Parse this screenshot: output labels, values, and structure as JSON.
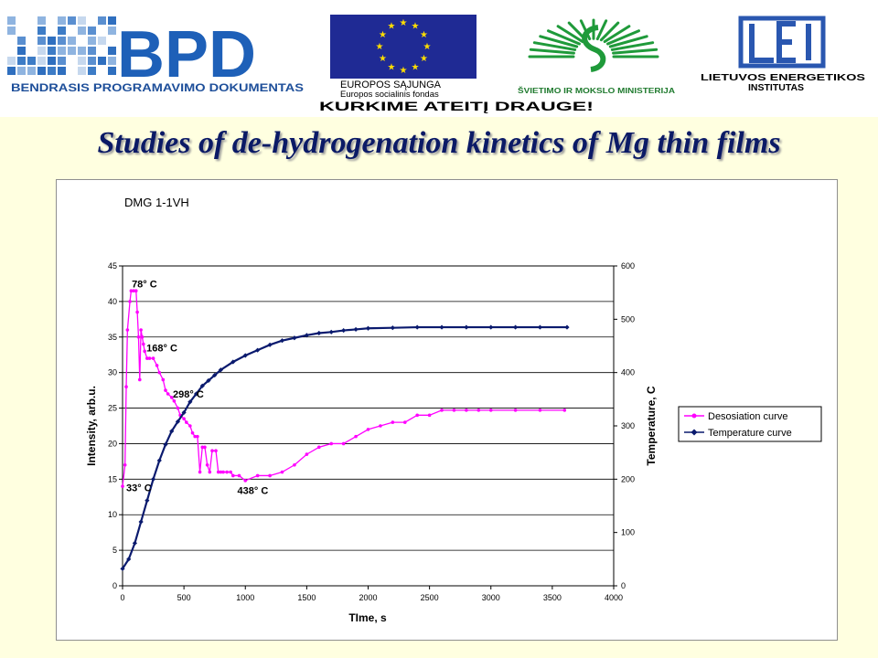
{
  "header": {
    "bpd": {
      "logo_text": "BPD",
      "caption": "BENDRASIS PROGRAMAVIMO DOKUMENTAS"
    },
    "eu": {
      "line1": "EUROPOS SĄJUNGA",
      "line2": "Europos socialinis fondas",
      "motto": "KURKIME ATEITĮ DRAUGE!"
    },
    "ministry": {
      "caption": "ŠVIETIMO IR MOKSLO MINISTERIJA"
    },
    "lei": {
      "logo_text": "LEI",
      "line1": "LIETUVOS ENERGETIKOS",
      "line2": "INSTITUTAS"
    }
  },
  "title": "Studies of de-hydrogenation kinetics of Mg thin films",
  "chart_data": {
    "type": "line",
    "title": "DMG 1-1VH",
    "xlabel": "TIme, s",
    "ylabel": "Intensity, arb.u.",
    "y2label": "Temperature, C",
    "xlim": [
      0,
      4000
    ],
    "ylim": [
      0,
      45
    ],
    "y2lim": [
      0,
      600
    ],
    "xticks": [
      0,
      500,
      1000,
      1500,
      2000,
      2500,
      3000,
      3500,
      4000
    ],
    "yticks": [
      0,
      5,
      10,
      15,
      20,
      25,
      30,
      35,
      40,
      45
    ],
    "y2ticks": [
      0,
      100,
      200,
      300,
      400,
      500,
      600
    ],
    "grid": "horizontal",
    "legend": "right",
    "series": [
      {
        "name": "Desosiation curve",
        "axis": "left",
        "color": "#ff00ff",
        "marker": "circle",
        "points": [
          [
            0,
            14
          ],
          [
            20,
            17
          ],
          [
            30,
            28
          ],
          [
            40,
            36
          ],
          [
            60,
            40
          ],
          [
            70,
            41.5
          ],
          [
            90,
            41.5
          ],
          [
            110,
            41.5
          ],
          [
            120,
            38.5
          ],
          [
            130,
            35
          ],
          [
            140,
            29
          ],
          [
            150,
            36
          ],
          [
            160,
            35
          ],
          [
            170,
            34
          ],
          [
            180,
            33
          ],
          [
            200,
            32
          ],
          [
            220,
            32
          ],
          [
            250,
            32
          ],
          [
            280,
            31
          ],
          [
            300,
            30
          ],
          [
            330,
            29
          ],
          [
            350,
            27.5
          ],
          [
            370,
            27
          ],
          [
            400,
            26.5
          ],
          [
            420,
            26
          ],
          [
            450,
            25
          ],
          [
            470,
            24
          ],
          [
            500,
            23.5
          ],
          [
            520,
            23
          ],
          [
            550,
            22.5
          ],
          [
            570,
            21.5
          ],
          [
            590,
            21
          ],
          [
            610,
            21
          ],
          [
            630,
            16
          ],
          [
            650,
            19.5
          ],
          [
            670,
            19.5
          ],
          [
            690,
            17
          ],
          [
            710,
            16
          ],
          [
            730,
            19
          ],
          [
            760,
            19
          ],
          [
            780,
            16
          ],
          [
            800,
            16
          ],
          [
            820,
            16
          ],
          [
            850,
            16
          ],
          [
            880,
            16
          ],
          [
            900,
            15.5
          ],
          [
            950,
            15.5
          ],
          [
            1000,
            14.8
          ],
          [
            1100,
            15.5
          ],
          [
            1200,
            15.5
          ],
          [
            1300,
            16
          ],
          [
            1400,
            17
          ],
          [
            1500,
            18.5
          ],
          [
            1600,
            19.5
          ],
          [
            1700,
            20
          ],
          [
            1800,
            20
          ],
          [
            1900,
            21
          ],
          [
            2000,
            22
          ],
          [
            2100,
            22.5
          ],
          [
            2200,
            23
          ],
          [
            2300,
            23
          ],
          [
            2400,
            24
          ],
          [
            2500,
            24
          ],
          [
            2600,
            24.7
          ],
          [
            2700,
            24.7
          ],
          [
            2800,
            24.7
          ],
          [
            2900,
            24.7
          ],
          [
            3000,
            24.7
          ],
          [
            3200,
            24.7
          ],
          [
            3400,
            24.7
          ],
          [
            3600,
            24.7
          ]
        ]
      },
      {
        "name": "Temperature curve",
        "axis": "right",
        "color": "#0a1a6e",
        "marker": "diamond",
        "points": [
          [
            0,
            32
          ],
          [
            50,
            50
          ],
          [
            100,
            80
          ],
          [
            150,
            120
          ],
          [
            200,
            160
          ],
          [
            250,
            200
          ],
          [
            300,
            235
          ],
          [
            350,
            265
          ],
          [
            400,
            290
          ],
          [
            450,
            308
          ],
          [
            500,
            325
          ],
          [
            550,
            345
          ],
          [
            600,
            360
          ],
          [
            650,
            375
          ],
          [
            700,
            385
          ],
          [
            750,
            395
          ],
          [
            800,
            405
          ],
          [
            900,
            420
          ],
          [
            1000,
            432
          ],
          [
            1100,
            442
          ],
          [
            1200,
            452
          ],
          [
            1300,
            460
          ],
          [
            1400,
            465
          ],
          [
            1500,
            470
          ],
          [
            1600,
            474
          ],
          [
            1700,
            476
          ],
          [
            1800,
            479
          ],
          [
            1900,
            481
          ],
          [
            2000,
            483
          ],
          [
            2200,
            484
          ],
          [
            2400,
            485
          ],
          [
            2600,
            485
          ],
          [
            2800,
            485
          ],
          [
            3000,
            485
          ],
          [
            3200,
            485
          ],
          [
            3400,
            485
          ],
          [
            3620,
            485
          ]
        ]
      }
    ],
    "annotations": [
      {
        "text": "78° C",
        "x": 75,
        "y": 42
      },
      {
        "text": "168° C",
        "x": 195,
        "y": 33
      },
      {
        "text": "298° C",
        "x": 410,
        "y": 26.5
      },
      {
        "text": "33° C",
        "x": 30,
        "y": 13.3
      },
      {
        "text": "438° C",
        "x": 935,
        "y": 12.9
      }
    ]
  }
}
